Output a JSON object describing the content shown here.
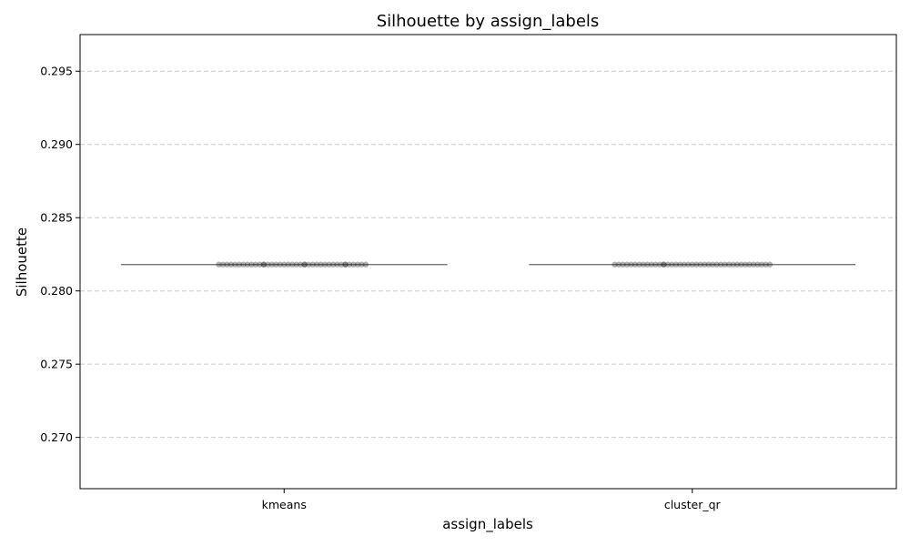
{
  "chart_data": {
    "type": "box",
    "title": "Silhouette by assign_labels",
    "xlabel": "assign_labels",
    "ylabel": "Silhouette",
    "categories": [
      "kmeans",
      "cluster_qr"
    ],
    "ylim": [
      0.2665,
      0.2975
    ],
    "yticks": [
      0.27,
      0.275,
      0.28,
      0.285,
      0.29,
      0.295
    ],
    "ytick_labels": [
      "0.270",
      "0.275",
      "0.280",
      "0.285",
      "0.290",
      "0.295"
    ],
    "grid": "y-dashed",
    "series": [
      {
        "category": "kmeans",
        "median": 0.2818,
        "q1": 0.2818,
        "q3": 0.2818
      },
      {
        "category": "cluster_qr",
        "median": 0.2818,
        "q1": 0.2818,
        "q3": 0.2818
      }
    ],
    "points": [
      {
        "category": "kmeans",
        "y": 0.2818,
        "jitter": [
          -0.16,
          -0.14,
          -0.13,
          -0.12,
          -0.11,
          -0.1,
          -0.09,
          -0.08,
          -0.07,
          -0.06,
          -0.05,
          -0.04,
          -0.03,
          -0.02,
          -0.01,
          0.0,
          0.01,
          0.02,
          0.03,
          0.04,
          0.05,
          0.06,
          0.07,
          0.08,
          0.09,
          0.1,
          0.11,
          0.12,
          0.13,
          0.14,
          0.15,
          0.16,
          0.17,
          0.18,
          0.19,
          0.2,
          -0.15,
          -0.05,
          0.05,
          0.15
        ]
      },
      {
        "category": "cluster_qr",
        "y": 0.2818,
        "jitter": [
          -0.19,
          -0.18,
          -0.17,
          -0.16,
          -0.15,
          -0.14,
          -0.13,
          -0.12,
          -0.11,
          -0.1,
          -0.09,
          -0.08,
          -0.07,
          -0.06,
          -0.05,
          -0.04,
          -0.03,
          -0.02,
          -0.01,
          0.0,
          0.01,
          0.02,
          0.03,
          0.04,
          0.05,
          0.06,
          0.07,
          0.08,
          0.09,
          0.1,
          0.11,
          0.12,
          0.13,
          0.14,
          0.15,
          0.16,
          0.17,
          0.18,
          0.19,
          -0.07
        ]
      }
    ],
    "colors": {
      "line": "#666666",
      "point": "#222222",
      "grid": "#cccccc",
      "frame": "#000000"
    }
  }
}
